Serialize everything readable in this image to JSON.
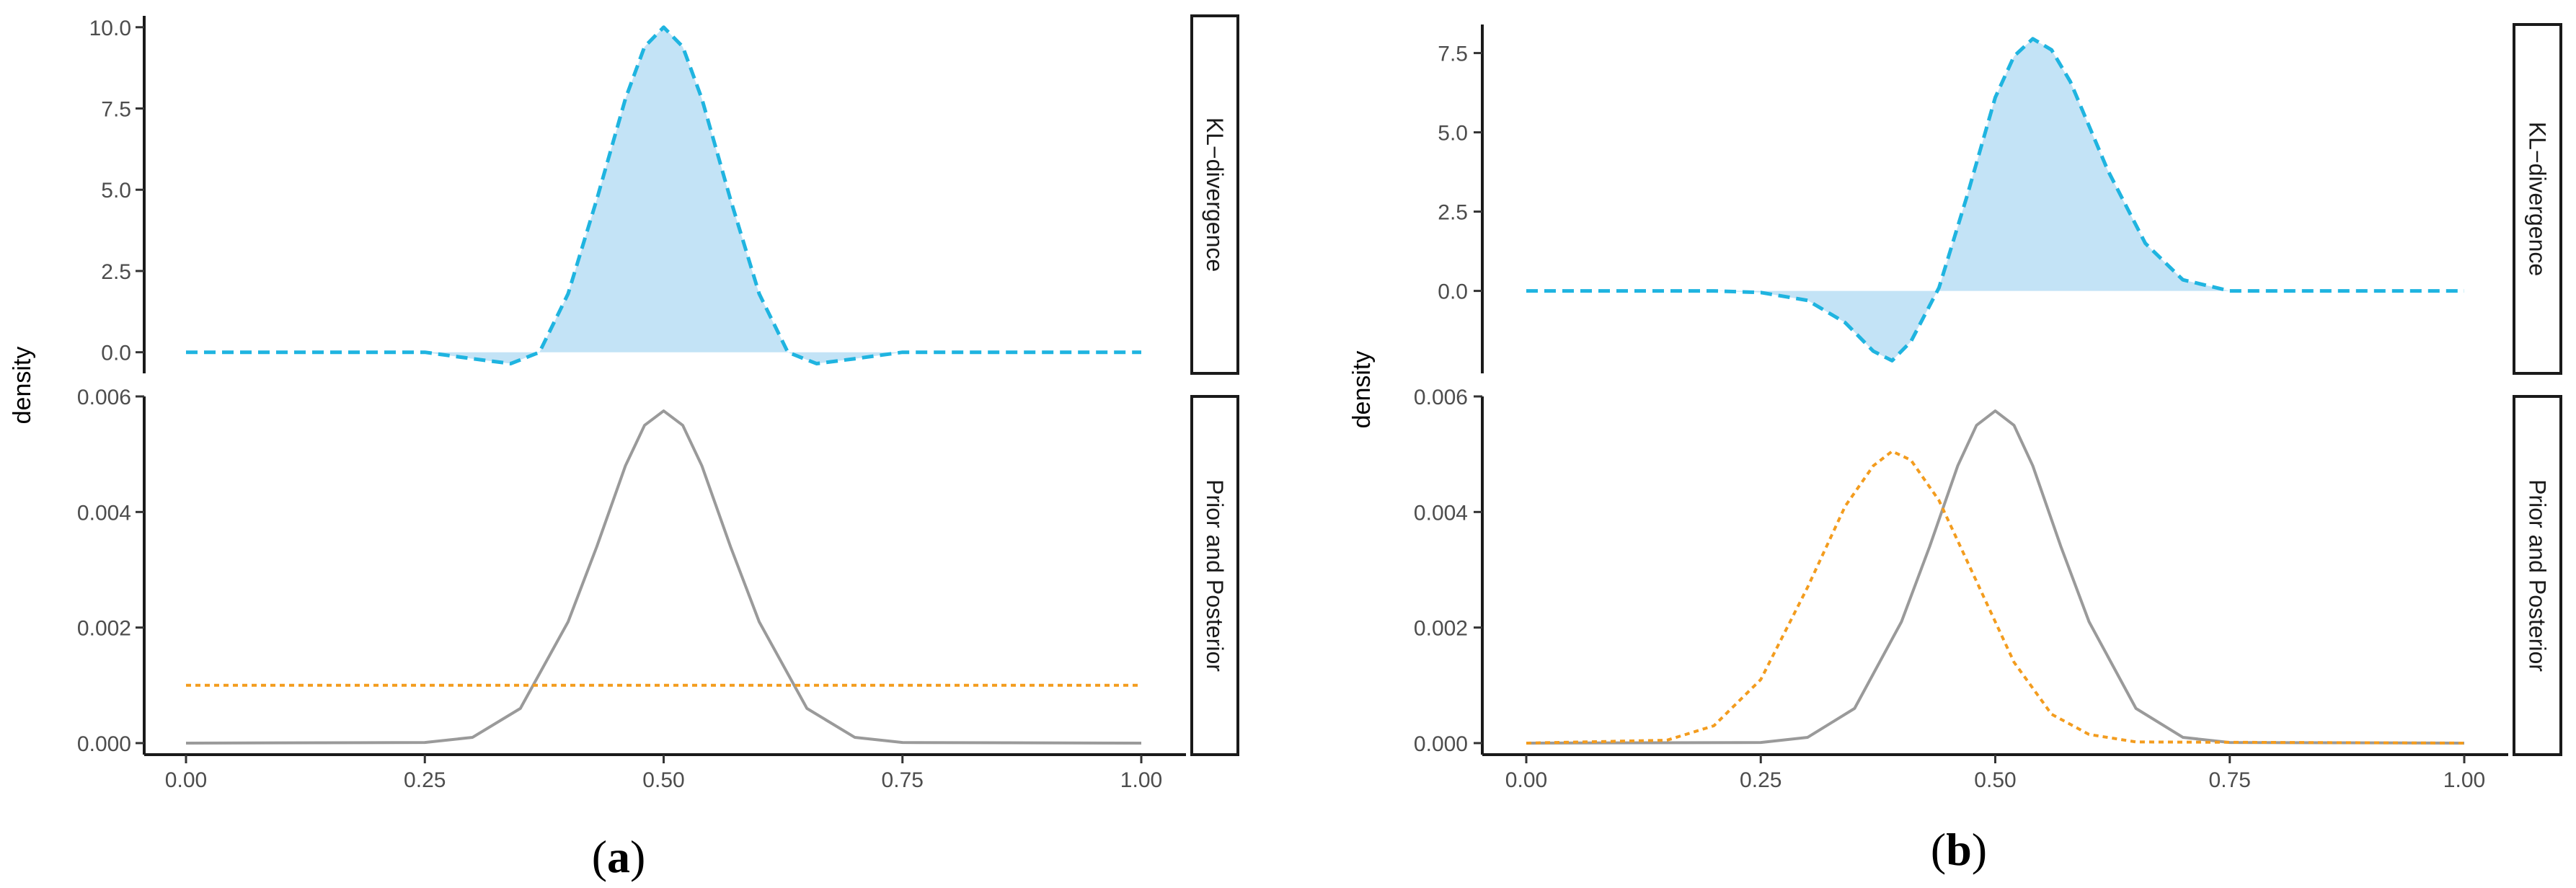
{
  "chart_data": [
    {
      "type": "line",
      "caption": {
        "open": "(",
        "letter": "a",
        "close": ")"
      },
      "ylabel": "density",
      "x_ticks": [
        "0.00",
        "0.25",
        "0.50",
        "0.75",
        "1.00"
      ],
      "xlim": [
        0,
        1
      ],
      "panels": [
        {
          "strip_label": "KL−divergence",
          "ylim": [
            -0.65,
            10.35
          ],
          "y_ticks": [
            {
              "value": 0,
              "label": "0.0"
            },
            {
              "value": 2.5,
              "label": "2.5"
            },
            {
              "value": 5,
              "label": "5.0"
            },
            {
              "value": 7.5,
              "label": "7.5"
            },
            {
              "value": 10,
              "label": "10.0"
            }
          ],
          "series": [
            {
              "style": "dashed",
              "color": "#1fb4e0",
              "fill": "#c3e3f6",
              "x": [
                0,
                0.25,
                0.3,
                0.34,
                0.37,
                0.4,
                0.43,
                0.46,
                0.48,
                0.5,
                0.52,
                0.54,
                0.57,
                0.6,
                0.63,
                0.66,
                0.7,
                0.75,
                1
              ],
              "y": [
                0,
                0,
                -0.2,
                -0.35,
                0,
                1.8,
                4.7,
                7.8,
                9.4,
                10.0,
                9.4,
                7.8,
                4.7,
                1.8,
                0,
                -0.35,
                -0.2,
                0,
                0
              ]
            }
          ]
        },
        {
          "strip_label": "Prior and Posterior",
          "ylim": [
            -0.0002,
            0.006
          ],
          "y_ticks": [
            {
              "value": 0,
              "label": "0.000"
            },
            {
              "value": 0.002,
              "label": "0.002"
            },
            {
              "value": 0.004,
              "label": "0.004"
            },
            {
              "value": 0.006,
              "label": "0.006"
            }
          ],
          "series": [
            {
              "style": "solid",
              "color": "#9a9a9a",
              "x": [
                0,
                0.25,
                0.3,
                0.35,
                0.4,
                0.43,
                0.46,
                0.48,
                0.5,
                0.52,
                0.54,
                0.57,
                0.6,
                0.65,
                0.7,
                0.75,
                1
              ],
              "y": [
                0,
                1e-05,
                0.0001,
                0.0006,
                0.0021,
                0.0034,
                0.0048,
                0.0055,
                0.00575,
                0.0055,
                0.0048,
                0.0034,
                0.0021,
                0.0006,
                0.0001,
                1e-05,
                0
              ]
            },
            {
              "style": "dotted",
              "color": "#f39c1e",
              "x": [
                0,
                1
              ],
              "y": [
                0.001,
                0.001
              ]
            }
          ]
        }
      ]
    },
    {
      "type": "line",
      "caption": {
        "open": "(",
        "letter": "b",
        "close": ")"
      },
      "ylabel": "density",
      "x_ticks": [
        "0.00",
        "0.25",
        "0.50",
        "0.75",
        "1.00"
      ],
      "xlim": [
        0,
        1
      ],
      "panels": [
        {
          "strip_label": "KL−divergence",
          "ylim": [
            -2.6,
            8.4
          ],
          "y_ticks": [
            {
              "value": 0,
              "label": "0.0"
            },
            {
              "value": 2.5,
              "label": "2.5"
            },
            {
              "value": 5,
              "label": "5.0"
            },
            {
              "value": 7.5,
              "label": "7.5"
            }
          ],
          "series": [
            {
              "style": "dashed",
              "color": "#1fb4e0",
              "fill": "#c3e3f6",
              "x": [
                0,
                0.2,
                0.25,
                0.3,
                0.34,
                0.37,
                0.39,
                0.41,
                0.44,
                0.47,
                0.5,
                0.52,
                0.54,
                0.56,
                0.58,
                0.62,
                0.66,
                0.7,
                0.75,
                1
              ],
              "y": [
                0,
                0,
                -0.05,
                -0.3,
                -1.0,
                -1.9,
                -2.2,
                -1.6,
                0.1,
                3.0,
                6.1,
                7.4,
                7.95,
                7.6,
                6.6,
                3.8,
                1.5,
                0.35,
                0,
                0
              ]
            }
          ]
        },
        {
          "strip_label": "Prior and Posterior",
          "ylim": [
            -0.0002,
            0.006
          ],
          "y_ticks": [
            {
              "value": 0,
              "label": "0.000"
            },
            {
              "value": 0.002,
              "label": "0.002"
            },
            {
              "value": 0.004,
              "label": "0.004"
            },
            {
              "value": 0.006,
              "label": "0.006"
            }
          ],
          "series": [
            {
              "style": "solid",
              "color": "#9a9a9a",
              "x": [
                0,
                0.25,
                0.3,
                0.35,
                0.4,
                0.43,
                0.46,
                0.48,
                0.5,
                0.52,
                0.54,
                0.57,
                0.6,
                0.65,
                0.7,
                0.75,
                1
              ],
              "y": [
                0,
                1e-05,
                0.0001,
                0.0006,
                0.0021,
                0.0034,
                0.0048,
                0.0055,
                0.00575,
                0.0055,
                0.0048,
                0.0034,
                0.0021,
                0.0006,
                0.0001,
                1e-05,
                0
              ]
            },
            {
              "style": "dotted",
              "color": "#f39c1e",
              "x": [
                0,
                0.15,
                0.2,
                0.25,
                0.3,
                0.34,
                0.37,
                0.39,
                0.41,
                0.44,
                0.48,
                0.52,
                0.56,
                0.6,
                0.65,
                1
              ],
              "y": [
                0,
                5e-05,
                0.0003,
                0.0011,
                0.0027,
                0.0041,
                0.0048,
                0.00505,
                0.0049,
                0.0042,
                0.0028,
                0.0014,
                0.0005,
                0.00015,
                2e-05,
                0
              ]
            }
          ]
        }
      ]
    }
  ]
}
